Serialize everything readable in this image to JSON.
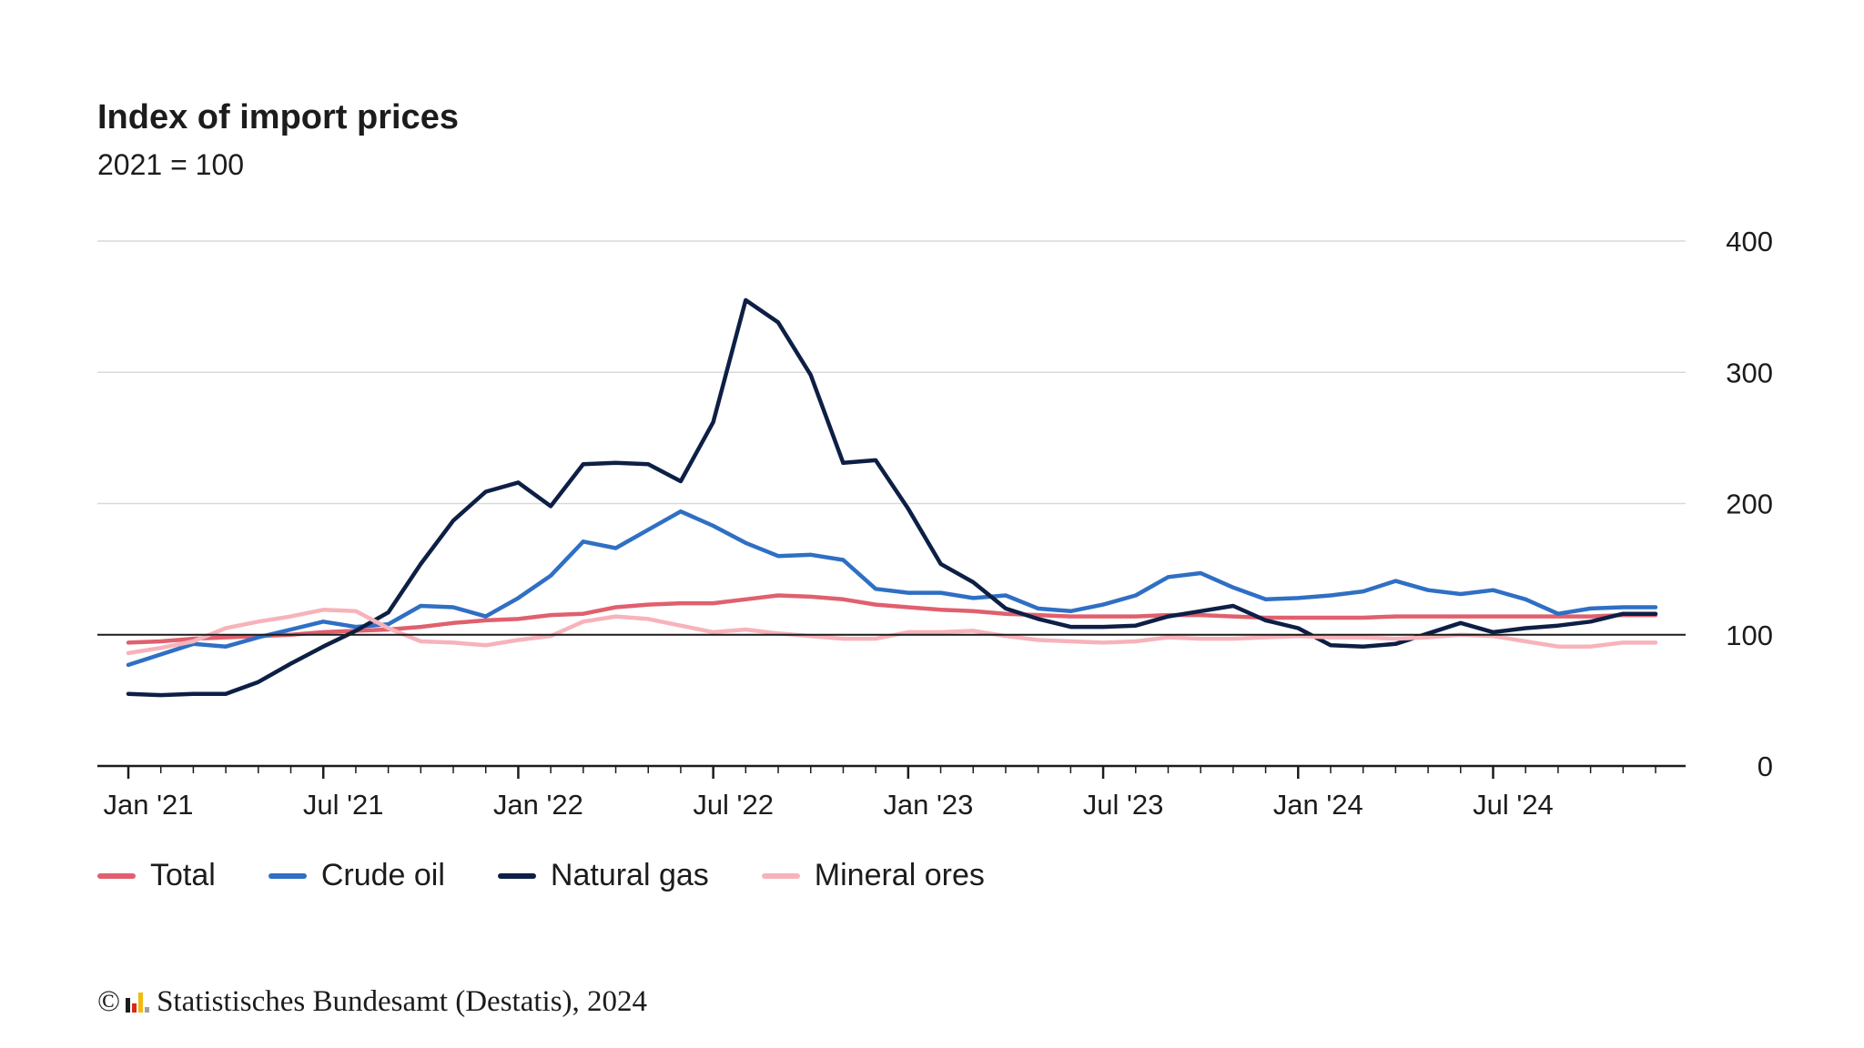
{
  "chart_data": {
    "type": "line",
    "title": "Index of import prices",
    "subtitle": "2021 = 100",
    "xlabel": "",
    "ylabel": "",
    "ylim": [
      0,
      400
    ],
    "yticks": [
      0,
      100,
      200,
      300,
      400
    ],
    "ytick_labels": [
      "0",
      "100",
      "200",
      "300",
      "400"
    ],
    "reference_line": 100,
    "x_labels": [
      {
        "index": 0,
        "label": "Jan '21"
      },
      {
        "index": 6,
        "label": "Jul '21"
      },
      {
        "index": 12,
        "label": "Jan '22"
      },
      {
        "index": 18,
        "label": "Jul '22"
      },
      {
        "index": 24,
        "label": "Jan '23"
      },
      {
        "index": 30,
        "label": "Jul '23"
      },
      {
        "index": 36,
        "label": "Jan '24"
      },
      {
        "index": 42,
        "label": "Jul '24"
      }
    ],
    "n_points": 48,
    "legend_position": "bottom-left",
    "series": [
      {
        "name": "Total",
        "color": "#e0606e",
        "values": [
          94,
          95,
          97,
          98,
          99,
          100,
          102,
          103,
          104,
          106,
          109,
          111,
          112,
          115,
          116,
          121,
          123,
          124,
          124,
          127,
          130,
          129,
          127,
          123,
          121,
          119,
          118,
          116,
          115,
          114,
          114,
          114,
          115,
          115,
          114,
          113,
          113,
          113,
          113,
          114,
          114,
          114,
          114,
          114,
          114,
          114,
          115,
          115
        ]
      },
      {
        "name": "Crude oil",
        "color": "#2f6fc4",
        "values": [
          77,
          85,
          93,
          91,
          98,
          104,
          110,
          106,
          108,
          122,
          121,
          114,
          128,
          145,
          171,
          166,
          180,
          194,
          183,
          170,
          160,
          161,
          157,
          135,
          132,
          132,
          128,
          130,
          120,
          118,
          123,
          130,
          144,
          147,
          136,
          127,
          128,
          130,
          133,
          141,
          134,
          131,
          134,
          127,
          116,
          120,
          121,
          121
        ]
      },
      {
        "name": "Natural gas",
        "color": "#0d1f45",
        "values": [
          55,
          54,
          55,
          55,
          64,
          78,
          91,
          103,
          117,
          154,
          187,
          209,
          216,
          198,
          230,
          231,
          230,
          217,
          262,
          355,
          338,
          298,
          231,
          233,
          196,
          154,
          140,
          120,
          112,
          106,
          106,
          107,
          114,
          118,
          122,
          111,
          105,
          92,
          91,
          93,
          101,
          109,
          102,
          105,
          107,
          110,
          116,
          116
        ]
      },
      {
        "name": "Mineral ores",
        "color": "#f7b3ba",
        "values": [
          86,
          90,
          95,
          105,
          110,
          114,
          119,
          118,
          105,
          95,
          94,
          92,
          96,
          99,
          110,
          114,
          112,
          107,
          102,
          104,
          101,
          99,
          97,
          97,
          102,
          102,
          103,
          99,
          96,
          95,
          94,
          95,
          98,
          97,
          97,
          98,
          99,
          98,
          98,
          97,
          98,
          100,
          99,
          95,
          91,
          91,
          94,
          94
        ]
      }
    ]
  },
  "footer": {
    "copyright_symbol": "©",
    "text": "Statistisches Bundesamt (Destatis), 2024",
    "logo_colors": [
      "#1c1c1c",
      "#d42a1c",
      "#f2b90f",
      "#9aa0a6"
    ]
  }
}
